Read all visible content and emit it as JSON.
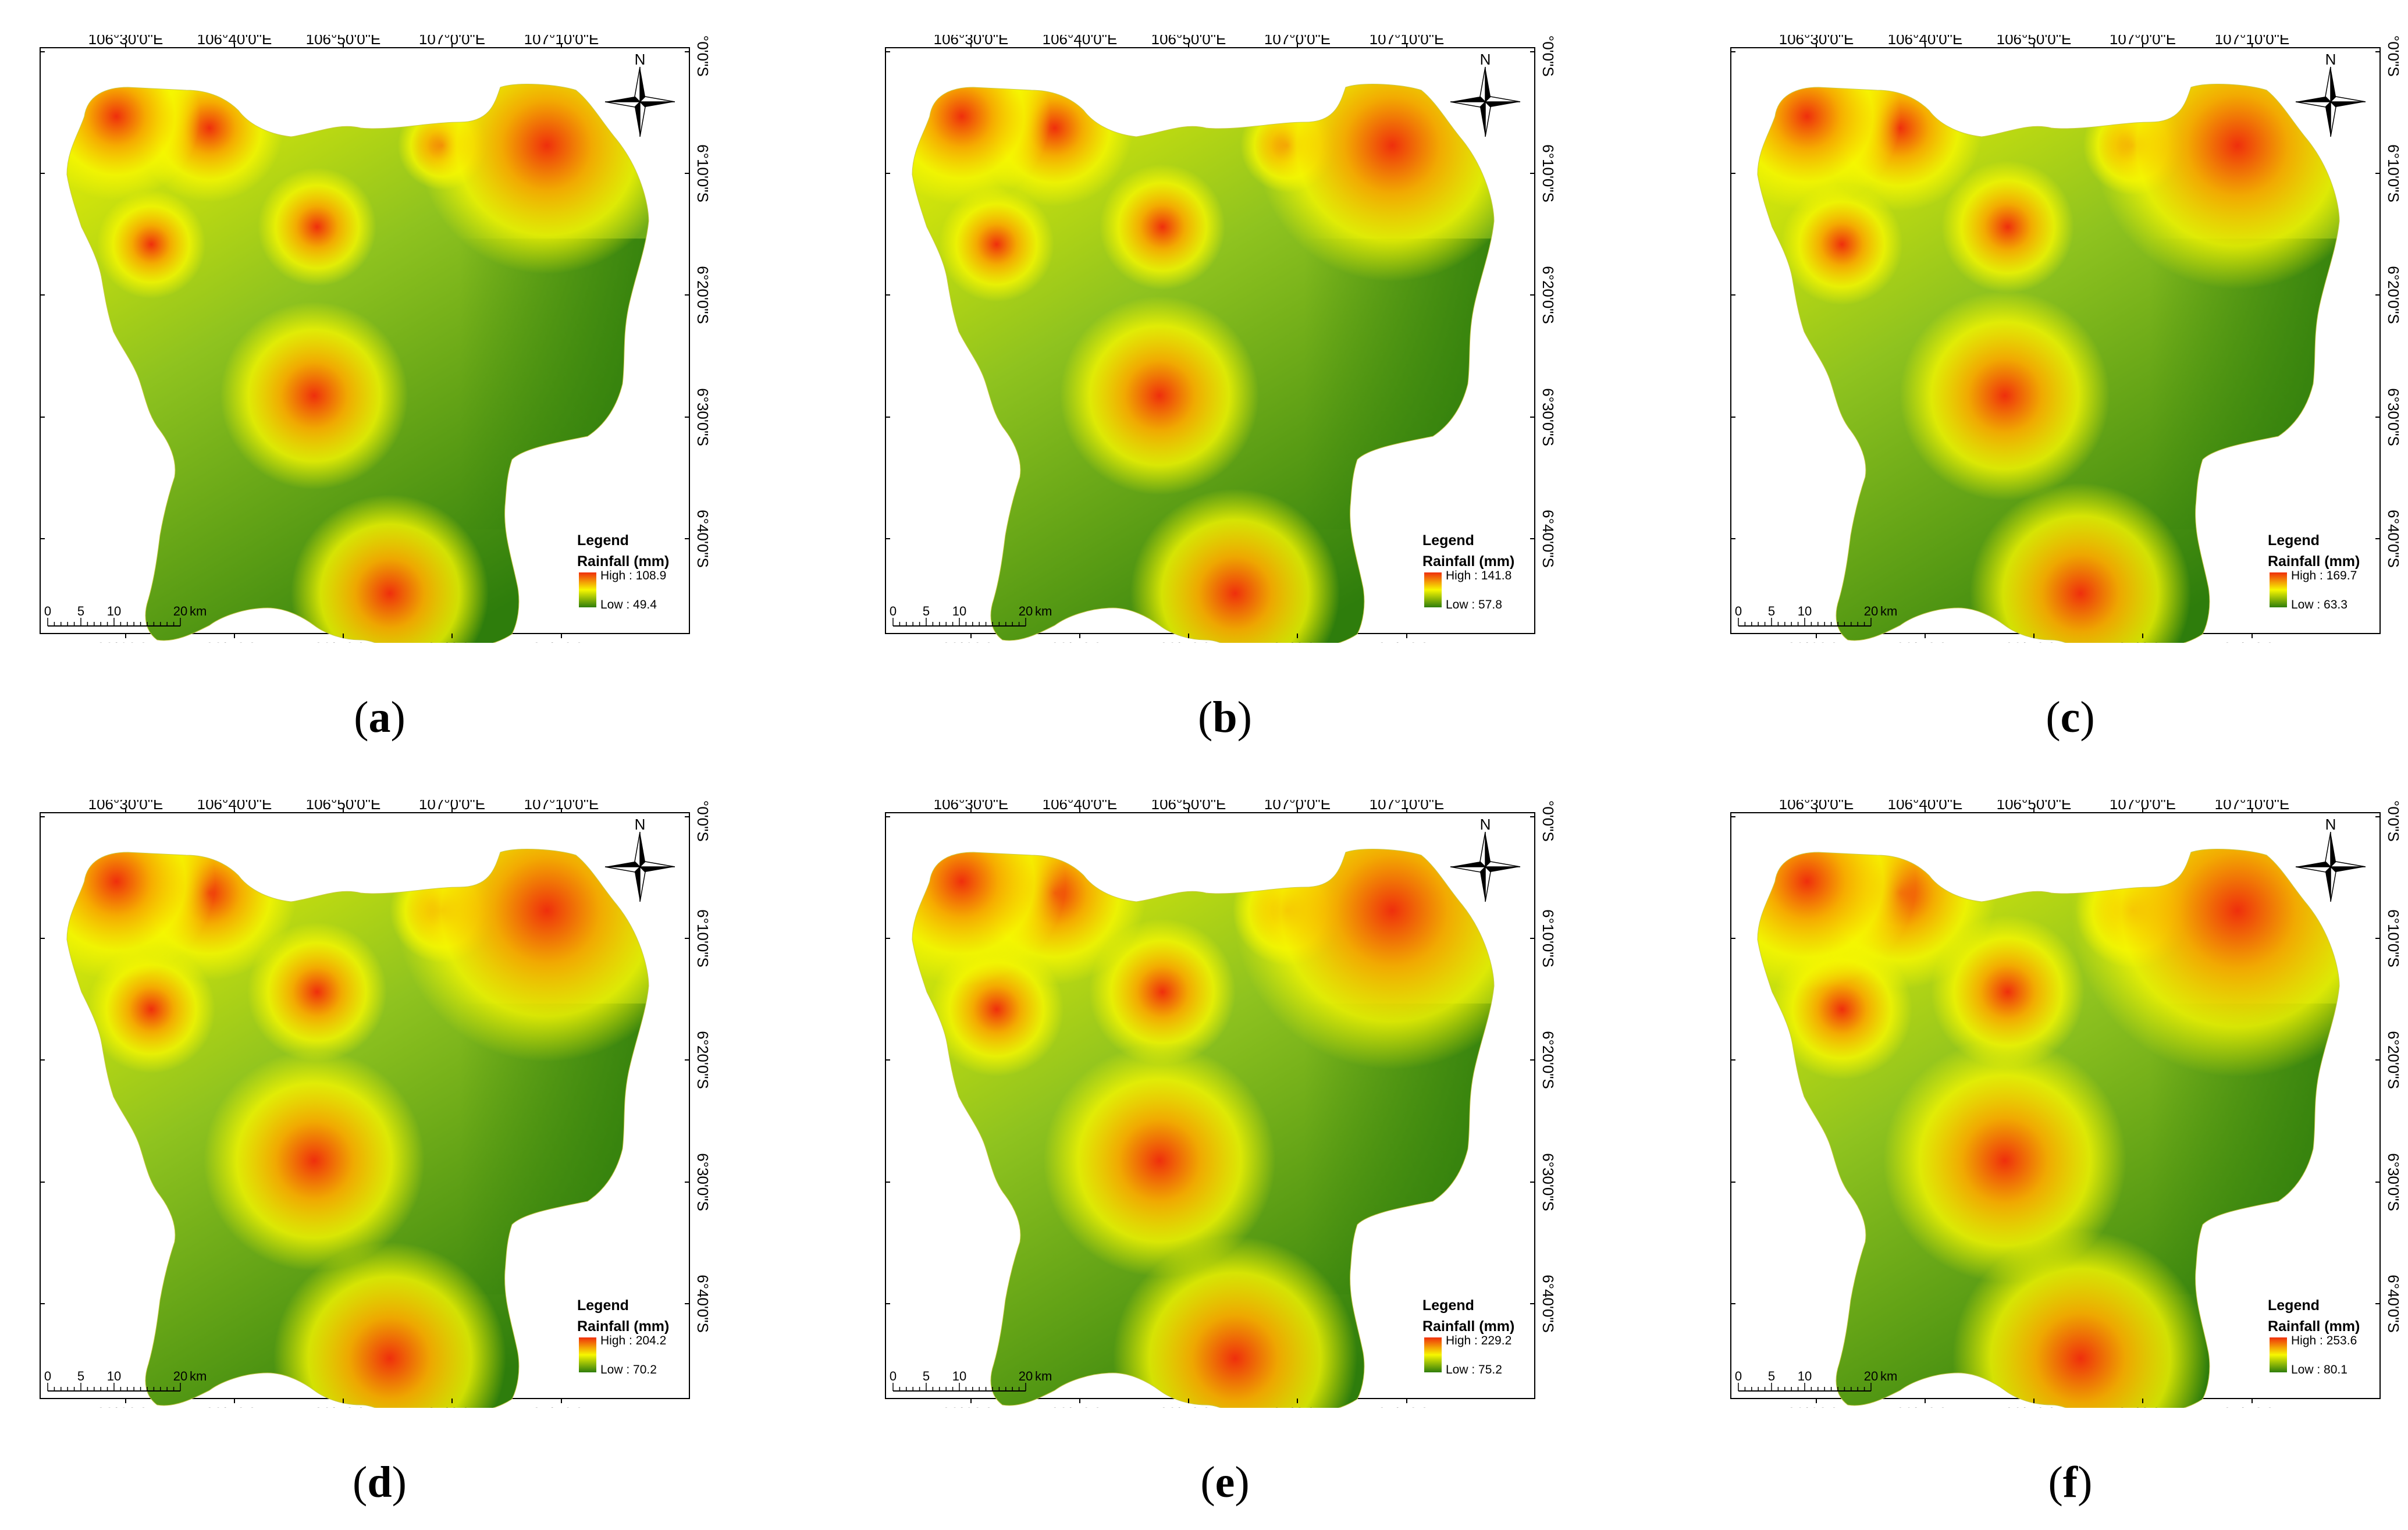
{
  "axes": {
    "top": [
      "106°30'0\"E",
      "106°40'0\"E",
      "106°50'0\"E",
      "107°0'0\"E",
      "107°10'0\"E"
    ],
    "bottom": [
      "106°30'0\"E",
      "106°40'0\"E",
      "106°50'0\"E",
      "107°0'0\"E",
      "107°10'0\"E"
    ],
    "left": [
      "6°0'0\"S",
      "6°10'0\"S",
      "6°20'0\"S",
      "6°30'0\"S",
      "6°40'0\"S"
    ],
    "right": [
      "6°0'0\"S",
      "6°10'0\"S",
      "6°20'0\"S",
      "6°30'0\"S",
      "6°40'0\"S"
    ]
  },
  "north_label": "N",
  "legend": {
    "title": "Legend",
    "subtitle": "Rainfall (mm)",
    "high_prefix": "High : ",
    "low_prefix": "Low : "
  },
  "scale_bar": {
    "ticks": [
      "0",
      "5",
      "10",
      "20"
    ],
    "unit": "km"
  },
  "colors": {
    "low": "#2e7d0c",
    "mid_low": "#8fc31f",
    "mid": "#f7f700",
    "mid_high": "#f7a800",
    "high": "#ef2f0c"
  },
  "panels": [
    {
      "label": "a",
      "high": "108.9",
      "low": "49.4"
    },
    {
      "label": "b",
      "high": "141.8",
      "low": "57.8"
    },
    {
      "label": "c",
      "high": "169.7",
      "low": "63.3"
    },
    {
      "label": "d",
      "high": "204.2",
      "low": "70.2"
    },
    {
      "label": "e",
      "high": "229.2",
      "low": "75.2"
    },
    {
      "label": "f",
      "high": "253.6",
      "low": "80.1"
    }
  ]
}
